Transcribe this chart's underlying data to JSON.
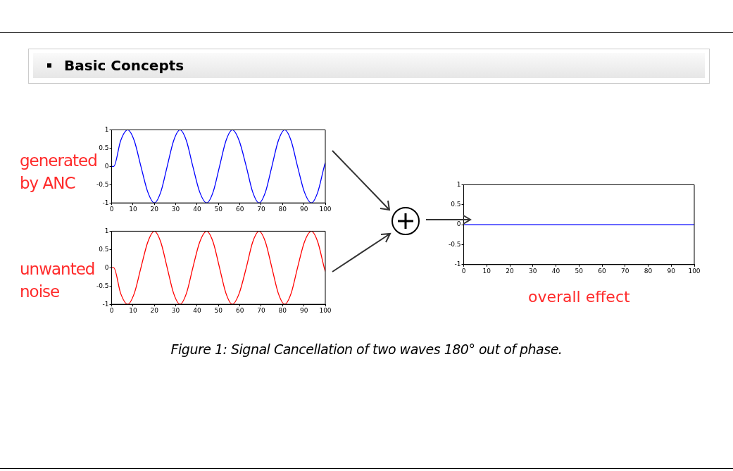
{
  "chart_data": [
    {
      "type": "line",
      "annotations": [
        "generated by ANC"
      ],
      "xlim": [
        0,
        100
      ],
      "xticks": [
        0,
        10,
        20,
        30,
        40,
        50,
        60,
        70,
        80,
        90,
        100
      ],
      "ylim": [
        -1,
        1
      ],
      "yticks": [
        -1,
        -0.5,
        0,
        0.5,
        1
      ],
      "grid": false,
      "legend": false,
      "marker": "none",
      "series": [
        {
          "color": "#0000ff",
          "x": [
            0,
            1,
            4.2,
            7.5,
            10.6,
            13.7,
            16.9,
            20,
            23,
            26,
            29,
            32,
            35,
            38,
            41.2,
            44.5,
            47.5,
            50.5,
            53.5,
            56.5,
            59.7,
            63,
            66,
            69,
            72,
            75,
            78,
            81,
            84,
            87,
            90.2,
            93.5,
            96.5,
            99.5,
            100
          ],
          "values": [
            0,
            0,
            0.7,
            1,
            0.7,
            0,
            -0.7,
            -1,
            -0.7,
            0,
            0.7,
            1,
            0.7,
            0,
            -0.7,
            -1,
            -0.7,
            0,
            0.7,
            1,
            0.7,
            0,
            -0.7,
            -1,
            -0.7,
            0,
            0.7,
            1,
            0.7,
            0,
            -0.7,
            -1,
            -0.7,
            0,
            0.1
          ]
        }
      ]
    },
    {
      "type": "line",
      "annotations": [
        "unwanted noise"
      ],
      "xlim": [
        0,
        100
      ],
      "xticks": [
        0,
        10,
        20,
        30,
        40,
        50,
        60,
        70,
        80,
        90,
        100
      ],
      "ylim": [
        -1,
        1
      ],
      "yticks": [
        -1,
        -0.5,
        0,
        0.5,
        1
      ],
      "grid": false,
      "legend": false,
      "marker": "none",
      "series": [
        {
          "color": "#ff0000",
          "x": [
            0,
            1,
            4.2,
            7.5,
            10.6,
            13.7,
            16.9,
            20,
            23,
            26,
            29,
            32,
            35,
            38,
            41.2,
            44.5,
            47.5,
            50.5,
            53.5,
            56.5,
            59.7,
            63,
            66,
            69,
            72,
            75,
            78,
            81,
            84,
            87,
            90.2,
            93.5,
            96.5,
            99.5,
            100
          ],
          "values": [
            0,
            0,
            -0.7,
            -1,
            -0.7,
            0,
            0.7,
            1,
            0.7,
            0,
            -0.7,
            -1,
            -0.7,
            0,
            0.7,
            1,
            0.7,
            0,
            -0.7,
            -1,
            -0.7,
            0,
            0.7,
            1,
            0.7,
            0,
            -0.7,
            -1,
            -0.7,
            0,
            0.7,
            1,
            0.7,
            0,
            -0.1
          ]
        }
      ]
    },
    {
      "type": "line",
      "xlabel": "overall effect",
      "annotations": [
        "Basic Concepts",
        "Figure 1: Signal Cancellation of two waves 180° out of phase."
      ],
      "xlim": [
        0,
        100
      ],
      "xticks": [
        0,
        10,
        20,
        30,
        40,
        50,
        60,
        70,
        80,
        90,
        100
      ],
      "ylim": [
        -1,
        1
      ],
      "yticks": [
        -1,
        -0.5,
        0,
        0.5,
        1
      ],
      "grid": false,
      "legend": false,
      "marker": "none",
      "series": [
        {
          "color": "#0000ff",
          "x": [
            0,
            100
          ],
          "values": [
            0,
            0
          ]
        }
      ]
    }
  ]
}
